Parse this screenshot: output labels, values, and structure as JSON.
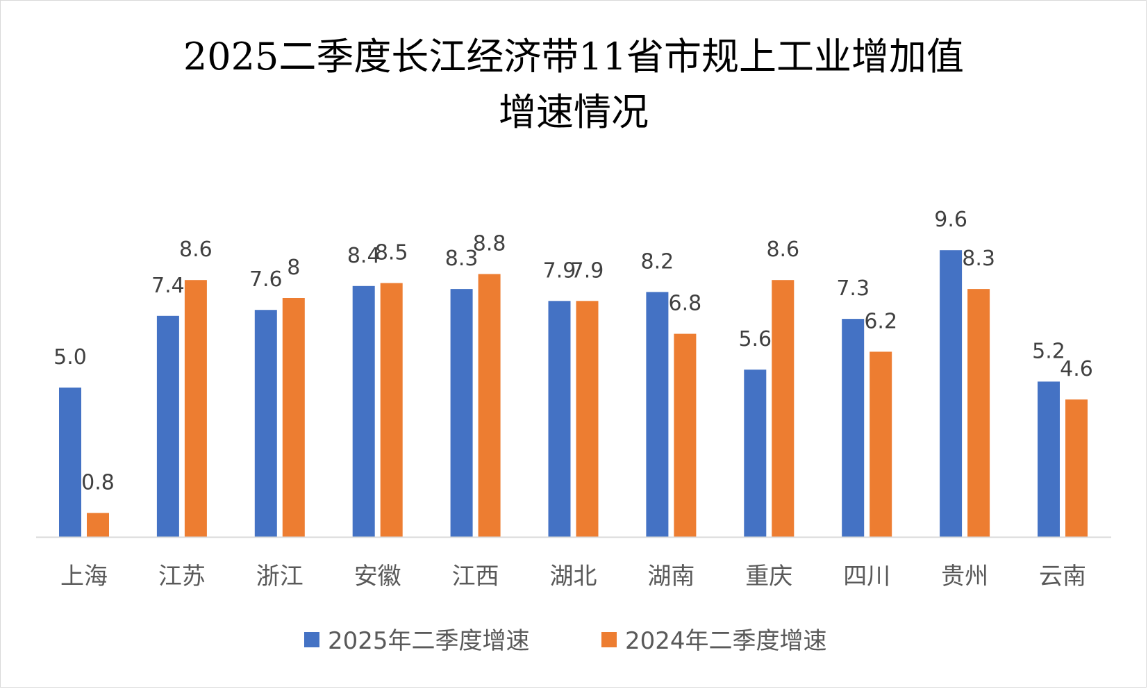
{
  "chart_data": {
    "type": "bar",
    "title_lines": [
      "2025二季度长江经济带11省市规上工业增加值",
      "增速情况"
    ],
    "categories": [
      "上海",
      "江苏",
      "浙江",
      "安徽",
      "江西",
      "湖北",
      "湖南",
      "重庆",
      "四川",
      "贵州",
      "云南"
    ],
    "series": [
      {
        "name": "2025年二季度增速",
        "color": "#4472C4",
        "values": [
          5.0,
          7.4,
          7.6,
          8.4,
          8.3,
          7.9,
          8.2,
          5.6,
          7.3,
          9.6,
          5.2
        ],
        "labels": [
          "5.0",
          "7.4",
          "7.6",
          "8.4",
          "8.3",
          "7.9",
          "8.2",
          "5.6",
          "7.3",
          "9.6",
          "5.2"
        ]
      },
      {
        "name": "2024年二季度增速",
        "color": "#ED7D31",
        "values": [
          0.8,
          8.6,
          8,
          8.5,
          8.8,
          7.9,
          6.8,
          8.6,
          6.2,
          8.3,
          4.6
        ],
        "labels": [
          "0.8",
          "8.6",
          "8",
          "8.5",
          "8.8",
          "7.9",
          "6.8",
          "8.6",
          "6.2",
          "8.3",
          "4.6"
        ]
      }
    ],
    "xlabel": "",
    "ylabel": "",
    "ylim": [
      0,
      10
    ],
    "grid": false,
    "legend": "bottom"
  }
}
